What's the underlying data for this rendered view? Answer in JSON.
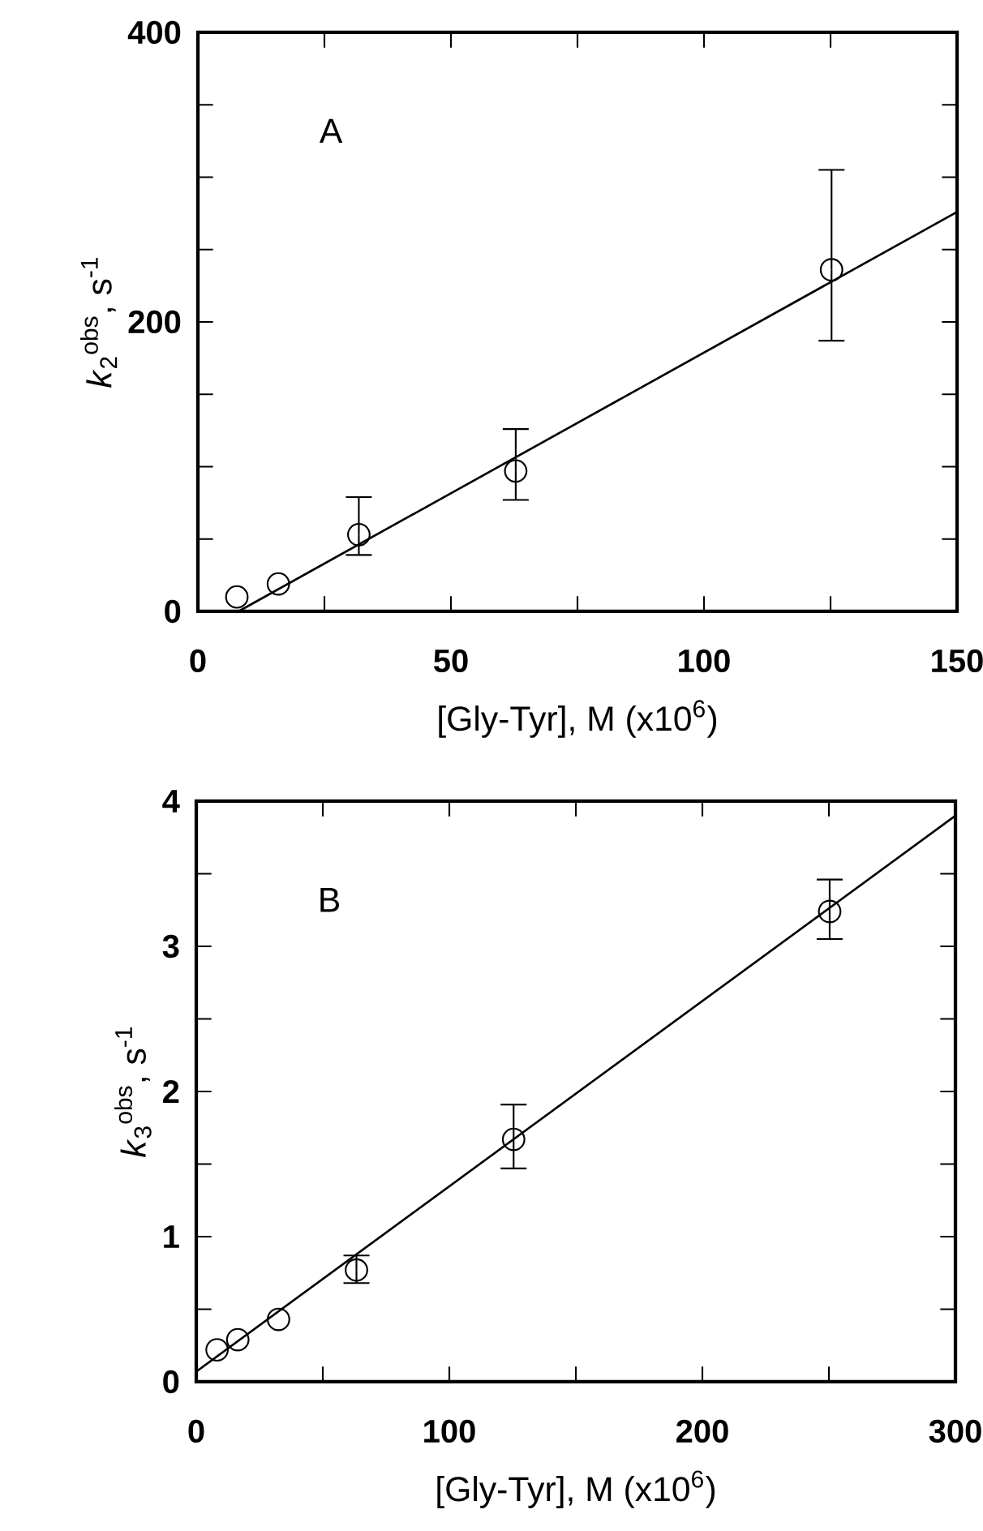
{
  "chart_data": [
    {
      "type": "scatter",
      "xlabel": "[Gly-Tyr], M (x10$^{6}$)",
      "ylabel": "*k*$_{2}$$^{obs}$, s$^{-1}$",
      "annotations": [
        "A"
      ],
      "xlim": [
        0,
        150
      ],
      "ylim": [
        0,
        400
      ],
      "xticks": [
        0,
        {
          "value": 25,
          "label": null
        },
        50,
        {
          "value": 75,
          "label": null
        },
        100,
        {
          "value": 125,
          "label": null
        },
        150
      ],
      "yticks": [
        0,
        {
          "value": 50,
          "label": null
        },
        {
          "value": 100,
          "label": null
        },
        {
          "value": 150,
          "label": null
        },
        200,
        {
          "value": 250,
          "label": null
        },
        {
          "value": 300,
          "label": null
        },
        {
          "value": 350,
          "label": null
        },
        400
      ],
      "series": [
        {
          "marker": "circle",
          "color": "#000000",
          "x": [
            7.7,
            15.9,
            31.8,
            62.8,
            125.2
          ],
          "values": [
            10,
            19,
            53,
            97,
            236
          ],
          "errors": [
            null,
            null,
            [
              39,
              79
            ],
            [
              77,
              126
            ],
            [
              187,
              305
            ]
          ]
        },
        {
          "type": "line",
          "marker": "none",
          "line_style": "solid",
          "color": "#000000",
          "x": [
            8,
            150
          ],
          "values": [
            0,
            276
          ]
        }
      ]
    },
    {
      "type": "scatter",
      "xlabel": "[Gly-Tyr], M (x10$^{6}$)",
      "ylabel": "*k*$_{3}$$^{obs}$, s$^{-1}$",
      "annotations": [
        "B"
      ],
      "xlim": [
        0,
        300
      ],
      "ylim": [
        0,
        4
      ],
      "xticks": [
        0,
        {
          "value": 50,
          "label": null
        },
        100,
        {
          "value": 150,
          "label": null
        },
        200,
        {
          "value": 250,
          "label": null
        },
        300
      ],
      "yticks": [
        0,
        {
          "value": 0.5,
          "label": null
        },
        1,
        {
          "value": 1.5,
          "label": null
        },
        2,
        {
          "value": 2.5,
          "label": null
        },
        3,
        {
          "value": 3.5,
          "label": null
        },
        4
      ],
      "series": [
        {
          "marker": "circle",
          "color": "#000000",
          "x": [
            8.2,
            16.4,
            32.5,
            63.3,
            125.4,
            250.3
          ],
          "values": [
            0.22,
            0.29,
            0.43,
            0.77,
            1.67,
            3.24
          ],
          "errors": [
            null,
            null,
            null,
            [
              0.68,
              0.87
            ],
            [
              1.47,
              1.91
            ],
            [
              3.05,
              3.46
            ]
          ]
        },
        {
          "type": "line",
          "marker": "none",
          "line_style": "solid",
          "color": "#000000",
          "x": [
            0,
            300
          ],
          "values": [
            0.07,
            3.9
          ]
        }
      ]
    }
  ]
}
